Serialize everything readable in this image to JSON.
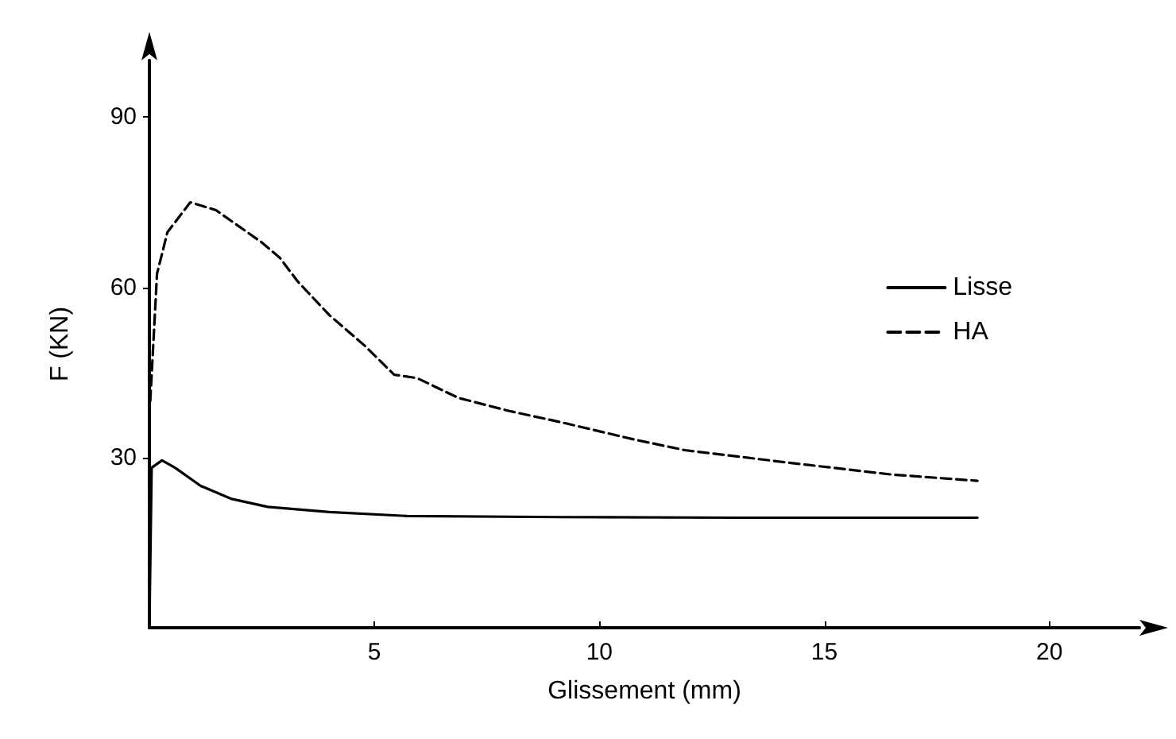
{
  "chart_data": {
    "type": "line",
    "xlabel": "Glissement (mm)",
    "ylabel": "F (KN)",
    "xlim": [
      0,
      22
    ],
    "xticks": [
      5,
      10,
      15,
      20
    ],
    "ylim": [
      0,
      100
    ],
    "yticks": [
      30,
      60,
      90
    ],
    "grid": false,
    "legend": "right",
    "marker": "none",
    "series": [
      {
        "name": "Lisse",
        "color": "#000000",
        "line_style": "solid",
        "x": [
          0,
          0.05,
          0.28,
          0.57,
          1.14,
          1.83,
          2.63,
          4.0,
          5.72,
          9.16,
          13.0,
          18.4
        ],
        "values": [
          0,
          28.2,
          29.5,
          28.2,
          25,
          22.7,
          21.3,
          20.4,
          19.7,
          19.5,
          19.4,
          19.4
        ]
      },
      {
        "name": "HA",
        "color": "#000000",
        "line_style": "dashed",
        "x": [
          0.02,
          0.17,
          0.4,
          0.91,
          1.48,
          2.5,
          2.9,
          3.3,
          4.0,
          4.8,
          5.44,
          5.95,
          6.87,
          8.0,
          9.16,
          10.76,
          11.9,
          14.2,
          16.5,
          18.4
        ],
        "values": [
          40,
          62.4,
          69.7,
          75,
          73.6,
          67.9,
          65.2,
          61,
          55.1,
          49.6,
          44.6,
          44,
          40.5,
          38.2,
          36.2,
          33.2,
          31.3,
          29.1,
          27,
          25.9
        ]
      }
    ]
  }
}
